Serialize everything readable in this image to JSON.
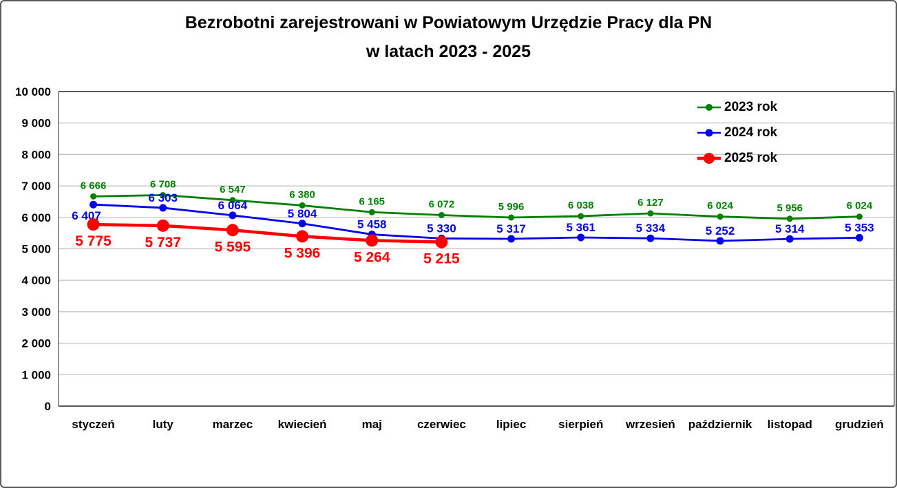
{
  "window": {
    "background_color": "#ffffff",
    "border_color": "#595959"
  },
  "chart_data": {
    "type": "line",
    "title_line1": "Bezrobotni zarejestrowani w Powiatowym Urzędzie Pracy dla PN",
    "title_line2": "w latach 2023 - 2025",
    "categories": [
      "styczeń",
      "luty",
      "marzec",
      "kwiecień",
      "maj",
      "czerwiec",
      "lipiec",
      "sierpień",
      "wrzesień",
      "październik",
      "listopad",
      "grudzień"
    ],
    "series": [
      {
        "name": "2023 rok",
        "color": "#008000",
        "values": [
          6666,
          6708,
          6547,
          6380,
          6165,
          6072,
          5996,
          6038,
          6127,
          6024,
          5956,
          6024
        ],
        "labels": [
          "6 666",
          "6 708",
          "6 547",
          "6 380",
          "6 165",
          "6 072",
          "5 996",
          "6 038",
          "6 127",
          "6 024",
          "5 956",
          "6 024"
        ]
      },
      {
        "name": "2024 rok",
        "color": "#0000EE",
        "values": [
          6407,
          6303,
          6064,
          5804,
          5458,
          5330,
          5317,
          5361,
          5334,
          5252,
          5314,
          5353
        ],
        "labels": [
          "6 407",
          "6 303",
          "6 064",
          "5 804",
          "5 458",
          "5 330",
          "5 317",
          "5 361",
          "5 334",
          "5 252",
          "5 314",
          "5 353"
        ]
      },
      {
        "name": "2025 rok",
        "color": "#FF0000",
        "values": [
          5775,
          5737,
          5595,
          5396,
          5264,
          5215
        ],
        "labels": [
          "5 775",
          "5 737",
          "5 595",
          "5 396",
          "5 264",
          "5 215"
        ]
      }
    ],
    "y_axis": {
      "min": 0,
      "max": 10000,
      "step": 1000,
      "tick_labels": [
        "0",
        "1 000",
        "2 000",
        "3 000",
        "4 000",
        "5 000",
        "6 000",
        "7 000",
        "8 000",
        "9 000",
        "10 000"
      ]
    },
    "grid": true,
    "gridline_color": "#bfbfbf",
    "axis_frame_color": "#6e6e6e",
    "axis_text_color": "#000000",
    "legend_position": "top-right"
  }
}
